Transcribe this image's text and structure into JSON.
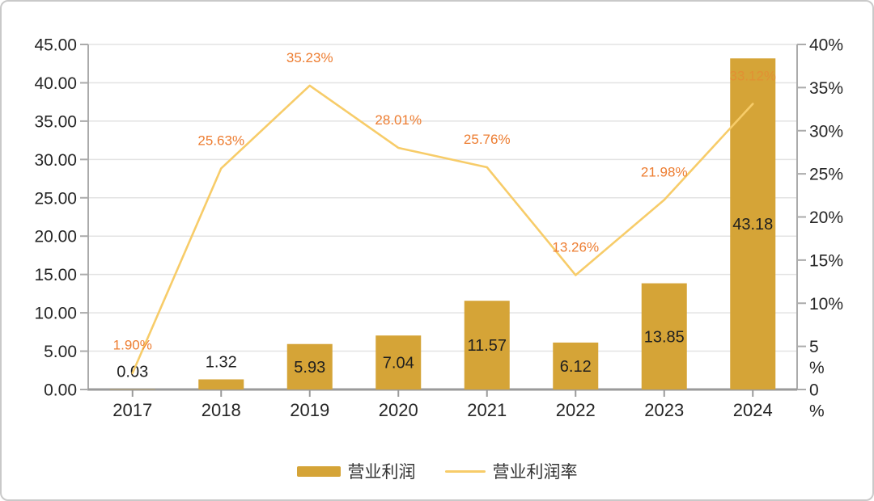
{
  "chart_data": {
    "type": "bar",
    "combo": "bar+line dual-axis",
    "categories": [
      "2017",
      "2018",
      "2019",
      "2020",
      "2021",
      "2022",
      "2023",
      "2024"
    ],
    "series": [
      {
        "name": "营业利润",
        "type": "bar",
        "axis": "left",
        "values": [
          0.03,
          1.32,
          5.93,
          7.04,
          11.57,
          6.12,
          13.85,
          43.18
        ],
        "labels": [
          "0.03",
          "1.32",
          "5.93",
          "7.04",
          "11.57",
          "6.12",
          "13.85",
          "43.18"
        ],
        "color": "#D5A437"
      },
      {
        "name": "营业利润率",
        "type": "line",
        "axis": "right",
        "values": [
          1.9,
          25.63,
          35.23,
          28.01,
          25.76,
          13.26,
          21.98,
          33.12
        ],
        "labels": [
          "1.90%",
          "25.63%",
          "35.23%",
          "28.01%",
          "25.76%",
          "13.26%",
          "21.98%",
          "33.12%"
        ],
        "color": "#F7CC69",
        "label_color": "#ED7D31",
        "muted_label_indices": [
          7
        ]
      }
    ],
    "left_axis": {
      "min": 0,
      "max": 45,
      "step": 5,
      "labels": [
        "45.00",
        "40.00",
        "35.00",
        "30.00",
        "25.00",
        "20.00",
        "15.00",
        "10.00",
        "5.00",
        "0.00"
      ]
    },
    "right_axis": {
      "min": 0,
      "max": 40,
      "step": 5,
      "labels": [
        "40%",
        "35%",
        "30%",
        "25%",
        "20%",
        "15%",
        "10%",
        [
          "5",
          "%"
        ],
        [
          "0",
          "%"
        ]
      ]
    },
    "grid": true,
    "legend_position": "bottom",
    "title": "",
    "xlabel": "",
    "ylabel": ""
  },
  "colors": {
    "bar": "#D5A437",
    "line": "#F7CC69",
    "pct_label": "#ED7D31",
    "axis_text": "#262626",
    "value_text": "#1F1F1F",
    "gridline": "#E3E3E3",
    "axis_line": "#ABABAB",
    "x_axis_line": "#9A9A9A",
    "border": "#C9C9C9",
    "background": "#FFFFFF"
  }
}
